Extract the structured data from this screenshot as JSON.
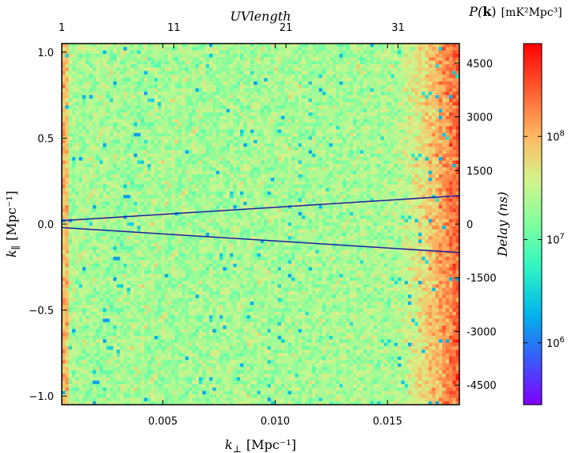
{
  "chart_data": {
    "type": "heatmap",
    "title": "",
    "xlabel": "k⊥ [Mpc⁻¹]",
    "xlabel_main": "k",
    "xlabel_sub": "⊥",
    "xlabel_unit": "[Mpc⁻¹]",
    "ylabel": "k∥ [Mpc⁻¹]",
    "ylabel_main": "k",
    "ylabel_sub": "∥",
    "ylabel_unit": "[Mpc⁻¹]",
    "top_xlabel": "UVlength",
    "right_ylabel": "Delay (ns)",
    "colorbar_label": "P(k) [mK²Mpc³]",
    "colorbar_label_main": "P(",
    "colorbar_label_bold": "k",
    "colorbar_label_close": ")",
    "colorbar_label_unit": "[mK²Mpc³]",
    "xlim": [
      0.0005,
      0.0182
    ],
    "ylim": [
      -1.05,
      1.05
    ],
    "x_ticks": [
      0.005,
      0.01,
      0.015
    ],
    "x_tick_labels": [
      "0.005",
      "0.010",
      "0.015"
    ],
    "y_ticks": [
      -1.0,
      -0.5,
      0.0,
      0.5,
      1.0
    ],
    "y_tick_labels": [
      "−1.0",
      "−0.5",
      "0.0",
      "0.5",
      "1.0"
    ],
    "top_ticks_x": [
      0.0005,
      0.00549,
      0.01048,
      0.01547
    ],
    "top_tick_labels": [
      "1",
      "11",
      "21",
      "31"
    ],
    "right_ticks_y": [
      0.936,
      0.624,
      0.312,
      0.0,
      -0.312,
      -0.624,
      -0.936
    ],
    "right_tick_labels": [
      "4500",
      "3000",
      "1500",
      "0",
      "-1500",
      "-3000",
      "-4500"
    ],
    "colorbar_log_range": [
      5.4,
      8.9
    ],
    "colorbar_ticks": [
      6,
      7,
      8
    ],
    "colorbar_tick_labels": [
      "10",
      "10",
      "10"
    ],
    "colorbar_tick_exponents": [
      "6",
      "7",
      "8"
    ],
    "grid_cols": 116,
    "grid_rows": 105,
    "heatmap_pattern": {
      "base_log_power": 7.35,
      "edge_rise_start_x": 0.0152,
      "edge_log_power_max": 8.45,
      "left_edge_x": 0.0008,
      "left_edge_log_power": 7.95,
      "noise_sigma": 0.35,
      "low_outlier_fraction": 0.015,
      "low_outlier_log_power": 6.15
    },
    "wedge_lines": [
      {
        "name": "horizon-upper",
        "x": [
          0.0005,
          0.0182
        ],
        "y": [
          0.02,
          0.165
        ]
      },
      {
        "name": "horizon-lower",
        "x": [
          0.0005,
          0.0182
        ],
        "y": [
          -0.02,
          -0.165
        ]
      }
    ],
    "colors": {
      "wedge_line": "#1f1f9e",
      "cmap": [
        "#7f00ff",
        "#3a59fc",
        "#00b4eb",
        "#2cf4c4",
        "#80ff9e",
        "#d5f38a",
        "#ffb460",
        "#ff5930",
        "#ff0000"
      ]
    }
  }
}
